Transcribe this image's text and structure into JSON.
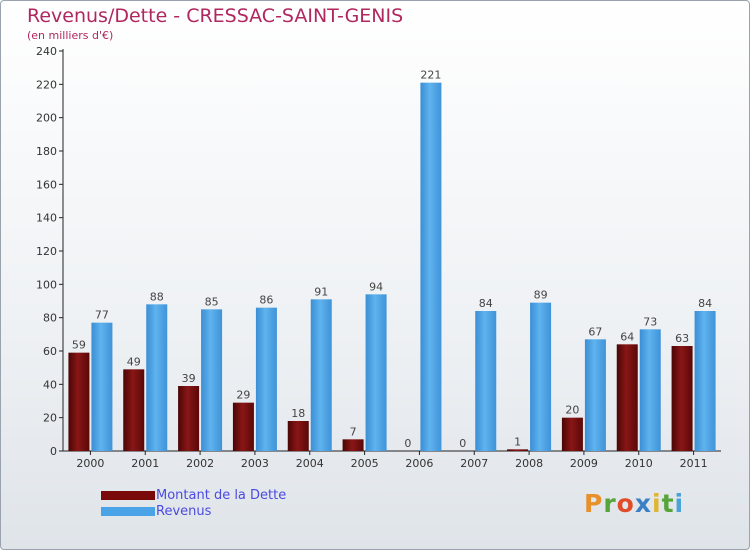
{
  "title": "Revenus/Dette - CRESSAC-SAINT-GENIS",
  "subtitle": "(en milliers d'€)",
  "brand": {
    "text": "Proxiti",
    "letter_colors": [
      "#e8902a",
      "#57a53a",
      "#e14b2a",
      "#3b7fc4",
      "#e0b630",
      "#57a53a",
      "#4aa3d8"
    ]
  },
  "colors": {
    "dette": "#7a0a0a",
    "revenus": "#4aa3e6",
    "title": "#b0275e",
    "legend_text": "#4a4adf"
  },
  "chart_data": {
    "type": "bar",
    "categories": [
      "2000",
      "2001",
      "2002",
      "2003",
      "2004",
      "2005",
      "2006",
      "2007",
      "2008",
      "2009",
      "2010",
      "2011"
    ],
    "series": [
      {
        "name": "Montant de la Dette",
        "values": [
          59,
          49,
          39,
          29,
          18,
          7,
          0,
          0,
          1,
          20,
          64,
          63
        ]
      },
      {
        "name": "Revenus",
        "values": [
          77,
          88,
          85,
          86,
          91,
          94,
          221,
          84,
          89,
          67,
          73,
          84
        ]
      }
    ],
    "ylim": [
      0,
      240
    ],
    "yticks": [
      0,
      20,
      40,
      60,
      80,
      100,
      120,
      140,
      160,
      180,
      200,
      220,
      240
    ],
    "grid": false,
    "legend_position": "bottom-left"
  }
}
